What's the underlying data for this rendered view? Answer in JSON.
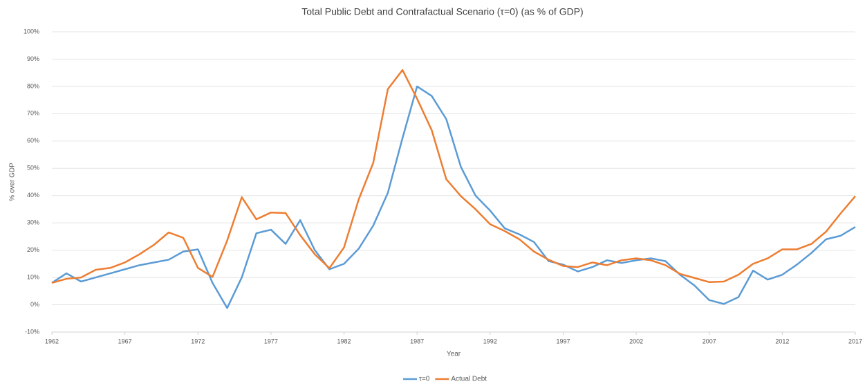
{
  "chart_data": {
    "type": "line",
    "title": "Total Public Debt and Contrafactual Scenario (τ=0) (as % of GDP)",
    "x_label": "Year",
    "y_label": "% over GDP",
    "x": [
      1962,
      1963,
      1964,
      1965,
      1966,
      1967,
      1968,
      1969,
      1970,
      1971,
      1972,
      1973,
      1974,
      1975,
      1976,
      1977,
      1978,
      1979,
      1980,
      1981,
      1982,
      1983,
      1984,
      1985,
      1986,
      1987,
      1988,
      1989,
      1990,
      1991,
      1992,
      1993,
      1994,
      1995,
      1996,
      1997,
      1998,
      1999,
      2000,
      2001,
      2002,
      2003,
      2004,
      2005,
      2006,
      2007,
      2008,
      2009,
      2010,
      2011,
      2012,
      2013,
      2014,
      2015,
      2016,
      2017
    ],
    "series": [
      {
        "name": "τ=0",
        "color": "#5b9bd5",
        "values": [
          8,
          11.5,
          8.5,
          10,
          11.5,
          13,
          14.5,
          15.5,
          16.5,
          19.5,
          20.3,
          8,
          -1.2,
          10,
          26.2,
          27.5,
          22.3,
          31,
          20,
          13,
          15,
          20.5,
          29,
          41,
          61,
          80,
          76.5,
          68,
          50.5,
          40,
          34.5,
          28,
          25.8,
          23,
          16,
          14.7,
          12.2,
          13.8,
          16.3,
          15.3,
          16.3,
          17,
          16,
          11,
          7,
          1.7,
          0.3,
          2.8,
          12.5,
          9.2,
          11,
          14.7,
          19,
          24,
          25.3,
          28.5
        ]
      },
      {
        "name": "Actual Debt",
        "color": "#ed7d31",
        "values": [
          8,
          9.5,
          10,
          12.8,
          13.5,
          15.5,
          18.5,
          22,
          26.5,
          24.5,
          13.5,
          10.2,
          23.5,
          39.4,
          31.3,
          33.8,
          33.6,
          25.5,
          18.5,
          13.4,
          21,
          38.5,
          52,
          79,
          86,
          75.5,
          64,
          46,
          39.8,
          35,
          29.5,
          27,
          24,
          19.5,
          16.5,
          14.2,
          13.8,
          15.5,
          14.5,
          16.3,
          17,
          16.3,
          14.5,
          11.3,
          9.8,
          8.3,
          8.5,
          11,
          15,
          17,
          20.3,
          20.3,
          22.3,
          26.8,
          33.5,
          39.8
        ]
      }
    ],
    "xlim": [
      1962,
      2017
    ],
    "xticks": [
      1962,
      1967,
      1972,
      1977,
      1982,
      1987,
      1992,
      1997,
      2002,
      2007,
      2012,
      2017
    ],
    "ylim": [
      -10,
      100
    ],
    "yticks": [
      {
        "value": -10,
        "label": "-10%"
      },
      {
        "value": 0,
        "label": "0%"
      },
      {
        "value": 10,
        "label": "10%"
      },
      {
        "value": 20,
        "label": "20%"
      },
      {
        "value": 30,
        "label": "30%"
      },
      {
        "value": 40,
        "label": "40%"
      },
      {
        "value": 50,
        "label": "50%"
      },
      {
        "value": 60,
        "label": "60%"
      },
      {
        "value": 70,
        "label": "70%"
      },
      {
        "value": 80,
        "label": "80%"
      },
      {
        "value": 90,
        "label": "90%"
      },
      {
        "value": 100,
        "label": "100%"
      }
    ],
    "grid": true,
    "legend": "bottom"
  }
}
